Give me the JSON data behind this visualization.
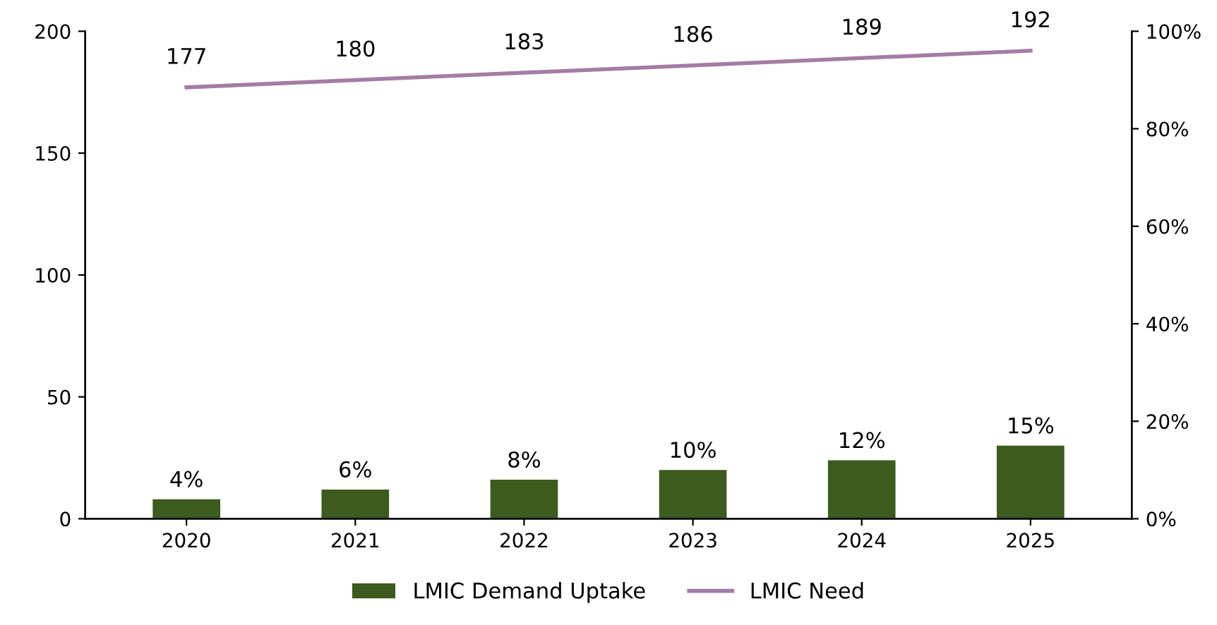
{
  "chart_data": {
    "type": "bar",
    "categories": [
      "2020",
      "2021",
      "2022",
      "2023",
      "2024",
      "2025"
    ],
    "series": [
      {
        "name": "LMIC Demand Uptake",
        "axis": "y2",
        "color": "#3d5a1f",
        "values": [
          4,
          6,
          8,
          10,
          12,
          15
        ],
        "value_labels": [
          "4%",
          "6%",
          "8%",
          "10%",
          "12%",
          "15%"
        ]
      },
      {
        "name": "LMIC Need",
        "type": "line",
        "axis": "y",
        "color": "#a47ca4",
        "values": [
          177,
          180,
          183,
          186,
          189,
          192
        ],
        "value_labels": [
          "177",
          "180",
          "183",
          "186",
          "189",
          "192"
        ]
      }
    ],
    "ylim": [
      0,
      200
    ],
    "yticks": [
      0,
      50,
      100,
      150,
      200
    ],
    "y2lim": [
      0,
      100
    ],
    "y2ticks": [
      {
        "value": 0,
        "label": "0%"
      },
      {
        "value": 20,
        "label": "20%"
      },
      {
        "value": 40,
        "label": "40%"
      },
      {
        "value": 60,
        "label": "60%"
      },
      {
        "value": 80,
        "label": "80%"
      },
      {
        "value": 100,
        "label": "100%"
      }
    ],
    "legend": "bottom",
    "grid": false,
    "marker": "none",
    "line_style": "solid"
  }
}
